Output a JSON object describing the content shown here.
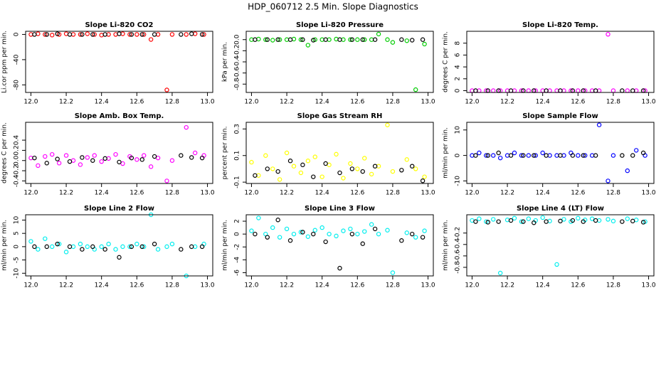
{
  "title": "HDP_060712  2.5 Min. Slope Diagnostics",
  "chart_data": [
    {
      "type": "scatter",
      "title": "Slope Li-820 CO2",
      "ylabel": "Li.cor ppm per min.",
      "xlim": [
        11.97,
        13.03
      ],
      "xticks": [
        {
          "value": 12,
          "label": "12.0"
        },
        12.2,
        12.4,
        12.6,
        12.8,
        {
          "value": 13,
          "label": "13.0"
        }
      ],
      "ylim": [
        -92,
        5
      ],
      "yticks": [
        -80,
        -40,
        0
      ],
      "series": [
        {
          "color": "#ff0000",
          "x": [
            12.0,
            12.04,
            12.08,
            12.12,
            12.16,
            12.2,
            12.24,
            12.28,
            12.32,
            12.36,
            12.4,
            12.44,
            12.48,
            12.52,
            12.56,
            12.6,
            12.64,
            12.68,
            12.72,
            12.77,
            12.8,
            12.88,
            12.93,
            12.98
          ],
          "y": [
            0,
            1,
            0,
            -1,
            0,
            1,
            0,
            0,
            1,
            0,
            -1,
            0,
            0,
            1,
            0,
            0,
            0,
            -8,
            0,
            -88,
            0,
            0,
            1,
            0
          ]
        },
        {
          "color": "#000000",
          "x": [
            12.02,
            12.09,
            12.15,
            12.22,
            12.29,
            12.35,
            12.42,
            12.5,
            12.57,
            12.63,
            12.7,
            12.85,
            12.91,
            12.97
          ],
          "y": [
            0,
            0,
            1,
            0,
            0,
            0,
            0,
            1,
            0,
            0,
            0,
            0,
            1,
            0
          ]
        }
      ]
    },
    {
      "type": "scatter",
      "title": "Slope Li-820 Pressure",
      "ylabel": "kPa per min.",
      "xlim": [
        11.97,
        13.03
      ],
      "xticks": [
        {
          "value": 12,
          "label": "12.0"
        },
        12.2,
        12.4,
        12.6,
        12.8,
        {
          "value": 13,
          "label": "13.0"
        }
      ],
      "ylim": [
        -0.95,
        0.15
      ],
      "yticks": [
        -0.8,
        -0.6,
        -0.4,
        -0.2,
        {
          "value": 0,
          "label": "0.0"
        }
      ],
      "series": [
        {
          "color": "#00cc00",
          "x": [
            12.0,
            12.04,
            12.08,
            12.12,
            12.16,
            12.2,
            12.24,
            12.28,
            12.32,
            12.36,
            12.4,
            12.44,
            12.48,
            12.52,
            12.56,
            12.6,
            12.64,
            12.68,
            12.72,
            12.77,
            12.8,
            12.88,
            12.93,
            12.98
          ],
          "y": [
            0,
            0.01,
            0,
            -0.01,
            0,
            0,
            0.01,
            0,
            -0.1,
            0,
            0,
            0,
            0.01,
            0,
            0,
            0,
            0,
            0,
            0.1,
            0,
            -0.05,
            -0.02,
            -0.9,
            -0.08
          ]
        },
        {
          "color": "#000000",
          "x": [
            12.02,
            12.09,
            12.15,
            12.22,
            12.29,
            12.35,
            12.42,
            12.5,
            12.57,
            12.63,
            12.7,
            12.85,
            12.91,
            12.97
          ],
          "y": [
            0,
            0,
            0,
            0,
            0,
            -0.01,
            0,
            0,
            0,
            0,
            0,
            0,
            -0.01,
            0
          ]
        }
      ]
    },
    {
      "type": "scatter",
      "title": "Slope Li-820 Temp.",
      "ylabel": "degrees C per min.",
      "xlim": [
        11.97,
        13.03
      ],
      "xticks": [
        {
          "value": 12,
          "label": "12.0"
        },
        12.2,
        12.4,
        12.6,
        12.8,
        {
          "value": 13,
          "label": "13.0"
        }
      ],
      "ylim": [
        -0.3,
        10
      ],
      "yticks": [
        0,
        2,
        4,
        6,
        8
      ],
      "series": [
        {
          "color": "#ff00ff",
          "x": [
            12.0,
            12.04,
            12.08,
            12.12,
            12.16,
            12.2,
            12.24,
            12.28,
            12.32,
            12.36,
            12.4,
            12.44,
            12.48,
            12.52,
            12.56,
            12.6,
            12.64,
            12.68,
            12.72,
            12.77,
            12.8,
            12.88,
            12.93,
            12.98
          ],
          "y": [
            0,
            0,
            0,
            0,
            0,
            0,
            0,
            0,
            0,
            0,
            0,
            0,
            0,
            0,
            0,
            0,
            0,
            0,
            0,
            9.5,
            0,
            0,
            0,
            0
          ]
        },
        {
          "color": "#000000",
          "x": [
            12.02,
            12.09,
            12.15,
            12.22,
            12.29,
            12.35,
            12.42,
            12.5,
            12.57,
            12.63,
            12.7,
            12.85,
            12.91,
            12.97
          ],
          "y": [
            0,
            0,
            0,
            0,
            0,
            0,
            0,
            0,
            0,
            0,
            0,
            0,
            0,
            0
          ]
        }
      ]
    },
    {
      "type": "scatter",
      "title": "Slope Amb. Box Temp.",
      "ylabel": "degrees C per min.",
      "xlim": [
        11.97,
        13.03
      ],
      "xticks": [
        {
          "value": 12,
          "label": "12.0"
        },
        12.2,
        12.4,
        12.6,
        12.8,
        {
          "value": 13,
          "label": "13.0"
        }
      ],
      "ylim": [
        -0.45,
        0.75
      ],
      "yticks": [
        -0.4,
        -0.2,
        {
          "value": 0,
          "label": "0.0"
        },
        0.2,
        0.4
      ],
      "series": [
        {
          "color": "#ff00ff",
          "x": [
            12.0,
            12.04,
            12.08,
            12.12,
            12.16,
            12.2,
            12.24,
            12.28,
            12.32,
            12.36,
            12.4,
            12.44,
            12.48,
            12.52,
            12.56,
            12.6,
            12.64,
            12.68,
            12.72,
            12.77,
            12.8,
            12.88,
            12.93,
            12.98
          ],
          "y": [
            0.05,
            -0.1,
            0.08,
            0.12,
            -0.05,
            0.1,
            0.0,
            -0.08,
            0.06,
            0.1,
            -0.02,
            0.04,
            0.12,
            -0.06,
            0.08,
            0.02,
            0.1,
            -0.12,
            0.05,
            -0.4,
            0.0,
            0.65,
            0.15,
            0.1
          ]
        },
        {
          "color": "#000000",
          "x": [
            12.02,
            12.09,
            12.15,
            12.22,
            12.29,
            12.35,
            12.42,
            12.5,
            12.57,
            12.63,
            12.7,
            12.85,
            12.91,
            12.97
          ],
          "y": [
            0.05,
            -0.05,
            0.03,
            -0.02,
            0.06,
            0.0,
            0.04,
            -0.03,
            0.05,
            0.02,
            0.08,
            0.1,
            0.06,
            0.05
          ]
        }
      ]
    },
    {
      "type": "scatter",
      "title": "Slope Gas Stream RH",
      "ylabel": "percent per min.",
      "xlim": [
        11.97,
        13.03
      ],
      "xticks": [
        {
          "value": 12,
          "label": "12.0"
        },
        12.2,
        12.4,
        12.6,
        12.8,
        {
          "value": 13,
          "label": "13.0"
        }
      ],
      "ylim": [
        -0.11,
        0.35
      ],
      "yticks": [
        -0.1,
        0.1,
        0.3
      ],
      "series": [
        {
          "color": "#ffff00",
          "x": [
            12.0,
            12.04,
            12.08,
            12.12,
            12.16,
            12.2,
            12.24,
            12.28,
            12.32,
            12.36,
            12.4,
            12.44,
            12.48,
            12.52,
            12.56,
            12.6,
            12.64,
            12.68,
            12.72,
            12.77,
            12.8,
            12.88,
            12.93,
            12.98
          ],
          "y": [
            0.05,
            -0.05,
            0.1,
            0.0,
            -0.08,
            0.12,
            0.02,
            -0.03,
            0.06,
            0.09,
            -0.06,
            0.03,
            0.11,
            -0.07,
            0.04,
            0.0,
            0.08,
            -0.04,
            0.02,
            0.33,
            -0.02,
            0.07,
            0.0,
            -0.06
          ]
        },
        {
          "color": "#000000",
          "x": [
            12.02,
            12.09,
            12.15,
            12.22,
            12.29,
            12.35,
            12.42,
            12.5,
            12.57,
            12.63,
            12.7,
            12.85,
            12.91,
            12.97
          ],
          "y": [
            -0.05,
            0.0,
            -0.02,
            0.06,
            0.03,
            -0.06,
            0.04,
            -0.03,
            0.0,
            -0.02,
            0.02,
            -0.01,
            0.02,
            -0.09
          ]
        }
      ]
    },
    {
      "type": "scatter",
      "title": "Slope Sample Flow",
      "ylabel": "ml/min per min.",
      "xlim": [
        11.97,
        13.03
      ],
      "xticks": [
        {
          "value": 12,
          "label": "12.0"
        },
        12.2,
        12.4,
        12.6,
        12.8,
        {
          "value": 13,
          "label": "13.0"
        }
      ],
      "ylim": [
        -11,
        13
      ],
      "yticks": [
        -10,
        0,
        10
      ],
      "series": [
        {
          "color": "#0000ff",
          "x": [
            12.0,
            12.04,
            12.08,
            12.12,
            12.16,
            12.2,
            12.24,
            12.28,
            12.32,
            12.36,
            12.4,
            12.44,
            12.48,
            12.52,
            12.56,
            12.6,
            12.64,
            12.68,
            12.72,
            12.77,
            12.8,
            12.88,
            12.93,
            12.98
          ],
          "y": [
            0,
            1,
            0,
            0,
            -1,
            0,
            1,
            0,
            0,
            0,
            1,
            0,
            0,
            0,
            1,
            0,
            0,
            0,
            12,
            -10,
            0,
            -6,
            2,
            0
          ]
        },
        {
          "color": "#000000",
          "x": [
            12.02,
            12.09,
            12.15,
            12.22,
            12.29,
            12.35,
            12.42,
            12.5,
            12.57,
            12.63,
            12.7,
            12.85,
            12.91,
            12.97
          ],
          "y": [
            0,
            0,
            1,
            0,
            0,
            0,
            0,
            0,
            0,
            0,
            0,
            0,
            0,
            1
          ]
        }
      ]
    },
    {
      "type": "scatter",
      "title": "Slope Line 2 Flow",
      "ylabel": "ml/min per min.",
      "xlim": [
        11.97,
        13.03
      ],
      "xticks": [
        {
          "value": 12,
          "label": "12.0"
        },
        12.2,
        12.4,
        12.6,
        12.8,
        {
          "value": 13,
          "label": "13.0"
        }
      ],
      "ylim": [
        -11,
        12
      ],
      "yticks": [
        -10,
        -5,
        0,
        5,
        10
      ],
      "series": [
        {
          "color": "#00eeee",
          "x": [
            12.0,
            12.04,
            12.08,
            12.12,
            12.16,
            12.2,
            12.24,
            12.28,
            12.32,
            12.36,
            12.4,
            12.44,
            12.48,
            12.52,
            12.56,
            12.6,
            12.64,
            12.68,
            12.72,
            12.77,
            12.8,
            12.88,
            12.93,
            12.98
          ],
          "y": [
            2,
            -1,
            3,
            0,
            1,
            -2,
            0,
            1,
            0,
            -1,
            0,
            1,
            -1,
            0,
            0,
            1,
            0,
            12,
            -1,
            0,
            1,
            -11,
            0,
            1
          ]
        },
        {
          "color": "#000000",
          "x": [
            12.02,
            12.09,
            12.15,
            12.22,
            12.29,
            12.35,
            12.42,
            12.5,
            12.57,
            12.63,
            12.7,
            12.85,
            12.91,
            12.97
          ],
          "y": [
            0,
            0,
            1,
            0,
            -1,
            0,
            -1,
            -4,
            0,
            0,
            1,
            -1,
            0,
            0
          ]
        }
      ]
    },
    {
      "type": "scatter",
      "title": "Slope Line 3 Flow",
      "ylabel": "ml/min per min.",
      "xlim": [
        11.97,
        13.03
      ],
      "xticks": [
        {
          "value": 12,
          "label": "12.0"
        },
        12.2,
        12.4,
        12.6,
        12.8,
        {
          "value": 13,
          "label": "13.0"
        }
      ],
      "ylim": [
        -6.5,
        3
      ],
      "yticks": [
        -6,
        -4,
        -2,
        0,
        2
      ],
      "series": [
        {
          "color": "#00eeee",
          "x": [
            12.0,
            12.04,
            12.08,
            12.12,
            12.16,
            12.2,
            12.24,
            12.28,
            12.32,
            12.36,
            12.4,
            12.44,
            12.48,
            12.52,
            12.56,
            12.6,
            12.64,
            12.68,
            12.72,
            12.77,
            12.8,
            12.88,
            12.93,
            12.98
          ],
          "y": [
            0.5,
            2.5,
            0,
            1,
            -0.5,
            0.8,
            0,
            0.3,
            -0.4,
            0.6,
            1,
            0,
            -0.3,
            0.5,
            0.8,
            0,
            0.4,
            1.5,
            0,
            0.6,
            -6,
            0.2,
            -0.5,
            0.5
          ]
        },
        {
          "color": "#000000",
          "x": [
            12.02,
            12.09,
            12.15,
            12.22,
            12.29,
            12.35,
            12.42,
            12.5,
            12.57,
            12.63,
            12.7,
            12.85,
            12.91,
            12.97
          ],
          "y": [
            0,
            -0.5,
            2.2,
            -1,
            0.3,
            0,
            -1.2,
            -5.3,
            0,
            -1.5,
            0.8,
            -1,
            0,
            -0.5
          ]
        }
      ]
    },
    {
      "type": "scatter",
      "title": "Slope Line 4 (LT) Flow",
      "ylabel": "ml/min per min.",
      "xlim": [
        11.97,
        13.03
      ],
      "xticks": [
        {
          "value": 12,
          "label": "12.0"
        },
        12.2,
        12.4,
        12.6,
        12.8,
        {
          "value": 13,
          "label": "13.0"
        }
      ],
      "ylim": [
        -0.95,
        0.12
      ],
      "yticks": [
        -0.8,
        -0.6,
        -0.4,
        -0.2
      ],
      "series": [
        {
          "color": "#00eeee",
          "x": [
            12.0,
            12.04,
            12.08,
            12.12,
            12.16,
            12.2,
            12.24,
            12.28,
            12.32,
            12.36,
            12.4,
            12.44,
            12.48,
            12.52,
            12.56,
            12.6,
            12.64,
            12.68,
            12.72,
            12.77,
            12.8,
            12.88,
            12.93,
            12.98
          ],
          "y": [
            0.02,
            0.05,
            0.0,
            0.04,
            -0.9,
            0.03,
            0.06,
            0.0,
            0.05,
            0.02,
            0.07,
            0.01,
            -0.75,
            0.04,
            0.0,
            0.06,
            0.03,
            0.05,
            0.02,
            0.04,
            0.01,
            0.05,
            0.03,
            0.0
          ]
        },
        {
          "color": "#000000",
          "x": [
            12.02,
            12.09,
            12.15,
            12.22,
            12.29,
            12.35,
            12.42,
            12.5,
            12.57,
            12.63,
            12.7,
            12.85,
            12.91,
            12.97
          ],
          "y": [
            0,
            -0.01,
            0.0,
            0.02,
            0.0,
            -0.02,
            0.0,
            0.01,
            0.02,
            0.0,
            0.02,
            0.0,
            0.01,
            -0.01
          ]
        }
      ]
    }
  ]
}
